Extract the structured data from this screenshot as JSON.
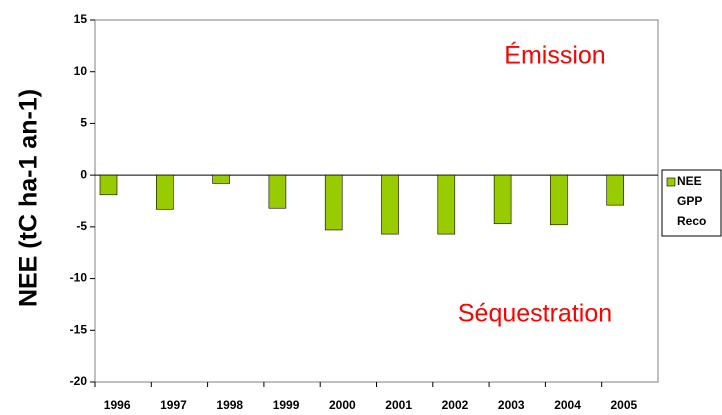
{
  "chart_data": {
    "type": "bar",
    "ylabel": "NEE (tC ha-1 an-1)",
    "annotations": [
      "Émission",
      "Séquestration"
    ],
    "categories": [
      "1996",
      "1997",
      "1998",
      "1999",
      "2000",
      "2001",
      "2002",
      "2003",
      "2004",
      "2005"
    ],
    "series": [
      {
        "name": "NEE",
        "color": "#99cc00",
        "values": [
          -1.9,
          -3.3,
          -0.8,
          -3.2,
          -5.3,
          -5.7,
          -5.7,
          -4.7,
          -4.8,
          -2.9
        ]
      },
      {
        "name": "GPP",
        "values": [
          null,
          null,
          null,
          null,
          null,
          null,
          null,
          null,
          null,
          null
        ]
      },
      {
        "name": "Reco",
        "values": [
          null,
          null,
          null,
          null,
          null,
          null,
          null,
          null,
          null,
          null
        ]
      }
    ],
    "ylim": [
      -20,
      15
    ],
    "yticks": [
      -20,
      -15,
      -10,
      -5,
      0,
      5,
      10,
      15
    ],
    "legend": "right"
  }
}
